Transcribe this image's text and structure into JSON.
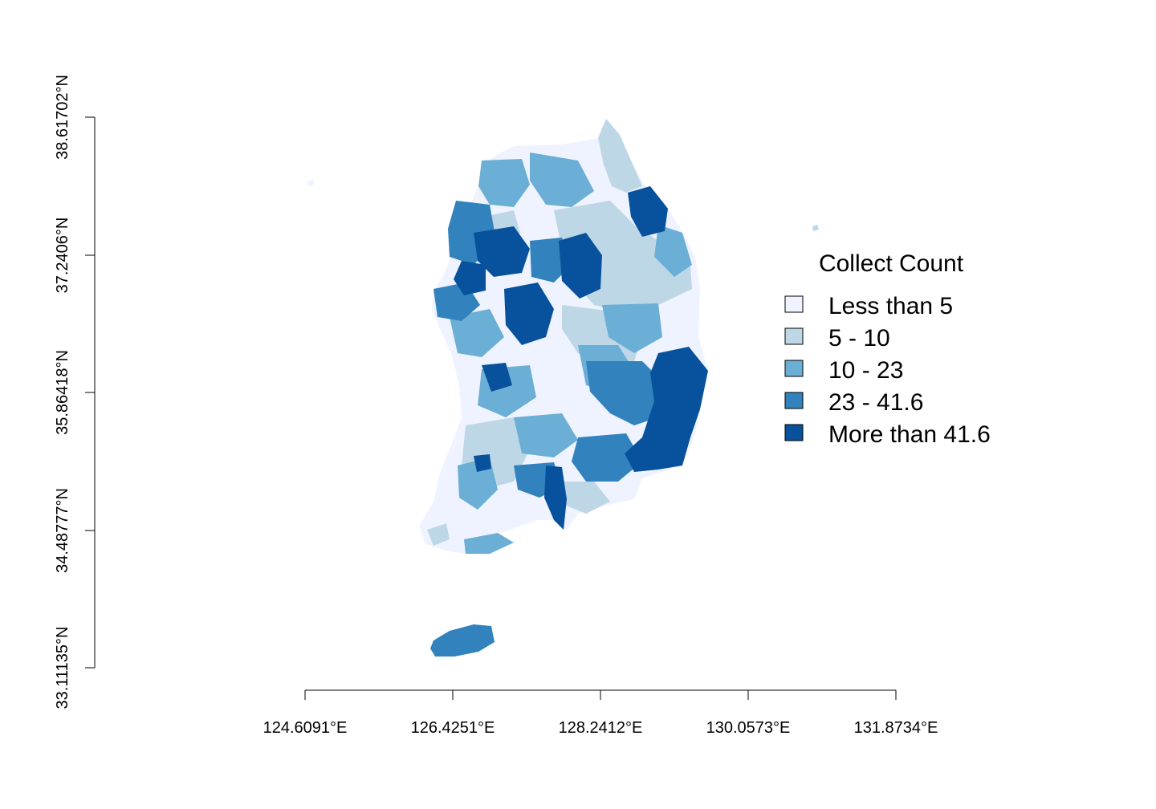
{
  "map": {
    "axes": {
      "x_ticks": [
        "124.6091°E",
        "126.4251°E",
        "128.2412°E",
        "130.0573°E",
        "131.8734°E"
      ],
      "y_ticks": [
        "33.11135°N",
        "34.48777°N",
        "35.86418°N",
        "37.2406°N",
        "38.61702°N"
      ]
    },
    "legend": {
      "title": "Collect Count",
      "items": [
        {
          "label": "Less than 5",
          "color": "#eff3ff"
        },
        {
          "label": "5 - 10",
          "color": "#bdd7e7"
        },
        {
          "label": "10 - 23",
          "color": "#6baed6"
        },
        {
          "label": "23 - 41.6",
          "color": "#3182bd"
        },
        {
          "label": "More than 41.6",
          "color": "#08519c"
        }
      ]
    }
  }
}
